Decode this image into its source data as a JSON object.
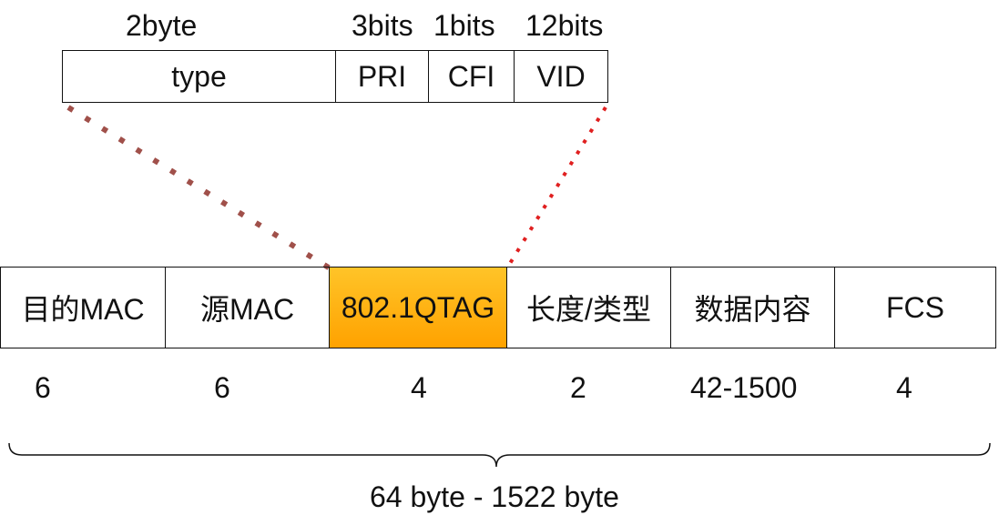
{
  "tag_detail": {
    "size_labels": [
      "2byte",
      "3bits",
      "1bits",
      "12bits"
    ],
    "fields": [
      "type",
      "PRI",
      "CFI",
      "VID"
    ]
  },
  "frame": {
    "fields": [
      "目的MAC",
      "源MAC",
      "802.1QTAG",
      "长度/类型",
      "数据内容",
      "FCS"
    ],
    "sizes": [
      "6",
      "6",
      "4",
      "2",
      "42-1500",
      "4"
    ],
    "highlight_color": "#FFB000"
  },
  "total_label": "64 byte - 1522 byte"
}
